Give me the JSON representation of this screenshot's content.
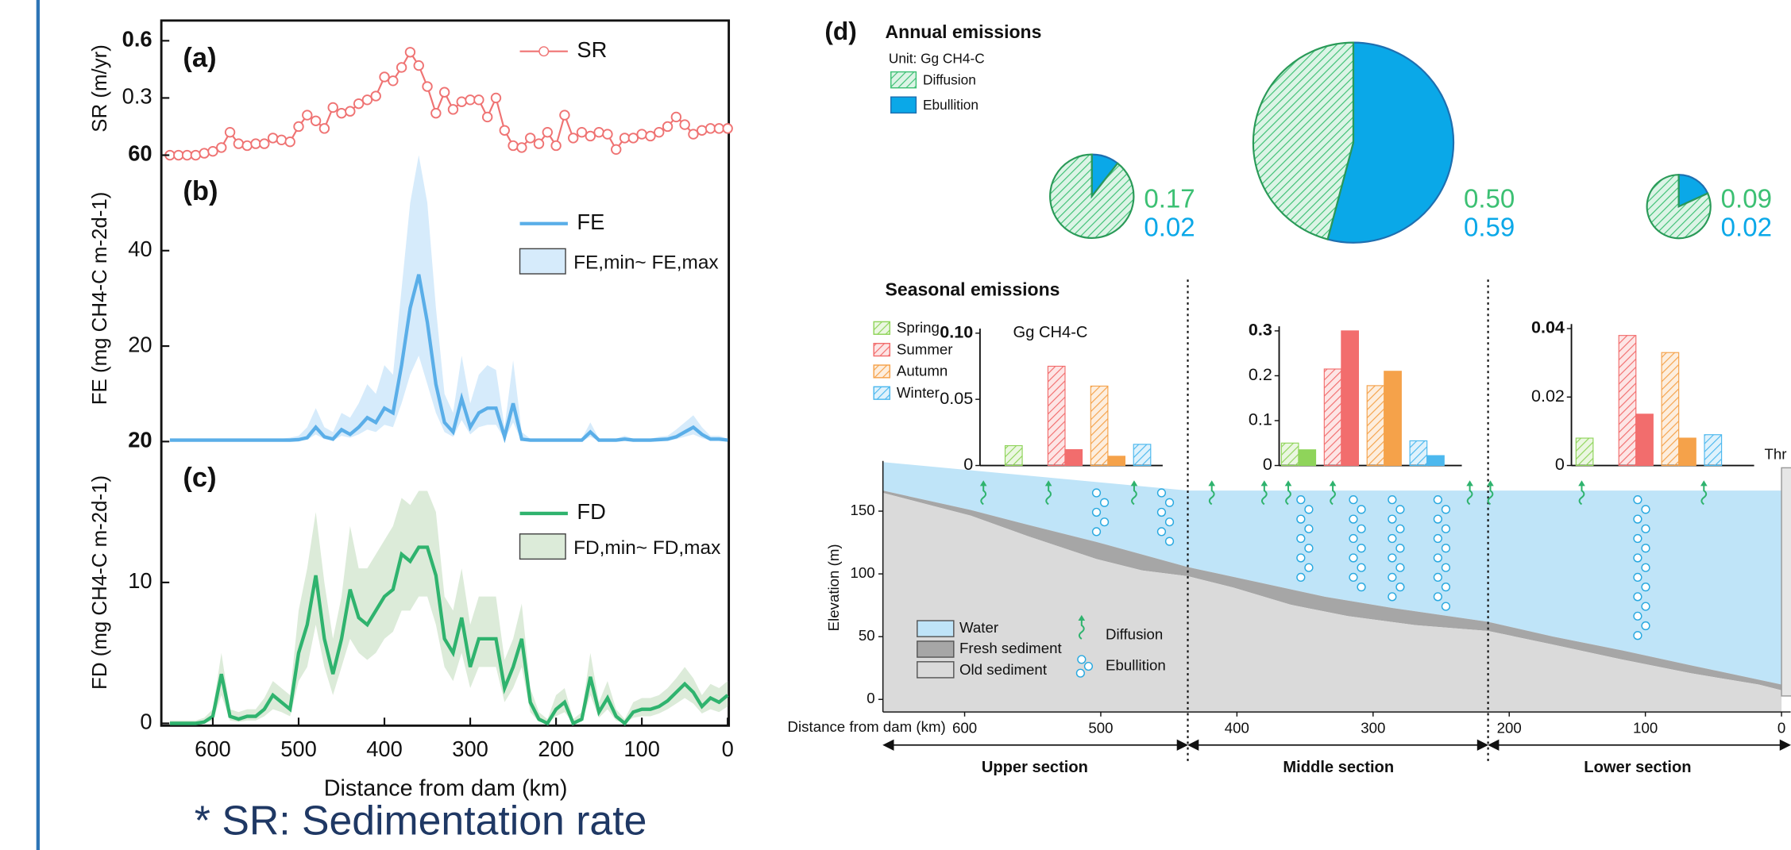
{
  "notes": {
    "footnote": "* SR: Sedimentation rate"
  },
  "chart_data": [
    {
      "type": "line",
      "panel_label": "(a)",
      "ylabel": "SR (m/yr)",
      "x": [
        650,
        640,
        630,
        620,
        610,
        600,
        590,
        580,
        570,
        560,
        550,
        540,
        530,
        520,
        510,
        500,
        490,
        480,
        470,
        460,
        450,
        440,
        430,
        420,
        410,
        400,
        390,
        380,
        370,
        360,
        350,
        340,
        330,
        320,
        310,
        300,
        290,
        280,
        270,
        260,
        250,
        240,
        230,
        220,
        210,
        200,
        190,
        180,
        170,
        160,
        150,
        140,
        130,
        120,
        110,
        100,
        90,
        80,
        70,
        60,
        50,
        40,
        30,
        20,
        10,
        0
      ],
      "xlim": [
        660,
        0
      ],
      "ylim": [
        0,
        0.7
      ],
      "yticks": [
        0.3,
        0.6
      ],
      "series": [
        {
          "name": "SR",
          "color": "#ef7373",
          "marker": "circle",
          "values": [
            0,
            0,
            0,
            0,
            0.01,
            0.02,
            0.04,
            0.12,
            0.06,
            0.05,
            0.06,
            0.06,
            0.09,
            0.08,
            0.07,
            0.15,
            0.21,
            0.18,
            0.14,
            0.25,
            0.22,
            0.23,
            0.27,
            0.29,
            0.31,
            0.41,
            0.39,
            0.46,
            0.54,
            0.47,
            0.36,
            0.22,
            0.33,
            0.24,
            0.28,
            0.29,
            0.29,
            0.2,
            0.3,
            0.13,
            0.05,
            0.04,
            0.09,
            0.06,
            0.12,
            0.05,
            0.21,
            0.09,
            0.12,
            0.1,
            0.12,
            0.11,
            0.03,
            0.09,
            0.09,
            0.11,
            0.1,
            0.12,
            0.15,
            0.2,
            0.16,
            0.11,
            0.13,
            0.14,
            0.14,
            0.14
          ]
        }
      ]
    },
    {
      "type": "line",
      "panel_label": "(b)",
      "ylabel": "FE (mg CH4-C m-2d-1)",
      "x": [
        650,
        640,
        630,
        620,
        610,
        600,
        590,
        580,
        570,
        560,
        550,
        540,
        530,
        520,
        510,
        500,
        490,
        480,
        470,
        460,
        450,
        440,
        430,
        420,
        410,
        400,
        390,
        380,
        370,
        360,
        350,
        340,
        330,
        320,
        310,
        300,
        290,
        280,
        270,
        260,
        250,
        240,
        230,
        220,
        210,
        200,
        190,
        180,
        170,
        160,
        150,
        140,
        130,
        120,
        110,
        100,
        90,
        80,
        70,
        60,
        50,
        40,
        30,
        20,
        10,
        0
      ],
      "xlim": [
        660,
        0
      ],
      "ylim": [
        0,
        60
      ],
      "yticks": [
        20,
        40,
        60
      ],
      "series": [
        {
          "name": "FE",
          "color": "#5aaee8",
          "values": [
            0.3,
            0.3,
            0.3,
            0.3,
            0.3,
            0.3,
            0.3,
            0.3,
            0.3,
            0.3,
            0.3,
            0.3,
            0.3,
            0.3,
            0.3,
            0.4,
            0.8,
            3,
            1,
            0.5,
            2.5,
            1.5,
            3,
            5,
            4,
            7,
            6,
            16,
            28,
            35,
            25,
            12,
            4,
            2,
            9,
            3,
            6,
            7,
            7,
            1,
            8,
            0.5,
            0.3,
            0.3,
            0.3,
            0.3,
            0.3,
            0.3,
            0.3,
            2,
            0.3,
            0.3,
            0.3,
            0.5,
            0.3,
            0.3,
            0.3,
            0.4,
            0.5,
            1,
            2,
            3,
            1.5,
            0.5,
            0.5,
            0.3
          ]
        }
      ],
      "band": {
        "name": "FE,min~ FE,max",
        "color": "#d6ebfb",
        "lower": [
          0.1,
          0.1,
          0.1,
          0.1,
          0.1,
          0.1,
          0.1,
          0.1,
          0.1,
          0.1,
          0.1,
          0.1,
          0.1,
          0.1,
          0.1,
          0.2,
          0.4,
          1.5,
          0.5,
          0.2,
          1.2,
          0.8,
          1.5,
          2.5,
          2,
          3.5,
          3,
          8,
          14,
          18,
          12,
          6,
          2,
          1,
          4.5,
          1.5,
          3,
          3.5,
          3.5,
          0.5,
          4,
          0.2,
          0.1,
          0.1,
          0.1,
          0.1,
          0.1,
          0.1,
          0.1,
          1,
          0.1,
          0.1,
          0.1,
          0.2,
          0.1,
          0.1,
          0.1,
          0.2,
          0.2,
          0.5,
          1,
          1.5,
          0.7,
          0.2,
          0.2,
          0.1
        ],
        "upper": [
          0.6,
          0.6,
          0.6,
          0.6,
          0.6,
          0.6,
          0.6,
          0.6,
          0.6,
          0.6,
          0.6,
          0.6,
          0.6,
          0.6,
          0.8,
          1.2,
          3,
          7,
          3,
          2,
          6,
          5,
          8,
          12,
          10,
          16,
          14,
          32,
          50,
          60,
          50,
          28,
          10,
          6,
          18,
          8,
          14,
          16,
          15,
          3,
          17,
          2,
          0.6,
          0.6,
          0.6,
          0.6,
          0.6,
          0.6,
          0.6,
          4,
          0.6,
          0.6,
          0.6,
          1.2,
          0.6,
          0.6,
          0.6,
          1,
          1.2,
          2.5,
          4,
          5.5,
          3,
          1.2,
          1.2,
          0.6
        ]
      }
    },
    {
      "type": "line",
      "panel_label": "(c)",
      "ylabel": "FD (mg CH4-C m-2d-1)",
      "x": [
        650,
        640,
        630,
        620,
        610,
        600,
        590,
        580,
        570,
        560,
        550,
        540,
        530,
        520,
        510,
        500,
        490,
        480,
        470,
        460,
        450,
        440,
        430,
        420,
        410,
        400,
        390,
        380,
        370,
        360,
        350,
        340,
        330,
        320,
        310,
        300,
        290,
        280,
        270,
        260,
        250,
        240,
        230,
        220,
        210,
        200,
        190,
        180,
        170,
        160,
        150,
        140,
        130,
        120,
        110,
        100,
        90,
        80,
        70,
        60,
        50,
        40,
        30,
        20,
        10,
        0
      ],
      "xlim": [
        660,
        0
      ],
      "xticks": [
        600,
        500,
        400,
        300,
        200,
        100,
        0
      ],
      "xlabel": "Distance from dam (km)",
      "ylim": [
        0,
        20
      ],
      "yticks": [
        0,
        10,
        20
      ],
      "series": [
        {
          "name": "FD",
          "color": "#2fb36e",
          "values": [
            0,
            0,
            0,
            0,
            0.1,
            0.5,
            3.5,
            0.5,
            0.3,
            0.5,
            0.5,
            1,
            2,
            1.5,
            1,
            5,
            7,
            10.5,
            6,
            3.5,
            6,
            9.5,
            7.5,
            7,
            8,
            9,
            9.5,
            12,
            11.5,
            12.5,
            12.5,
            10.5,
            6,
            5,
            7.5,
            4,
            6,
            6,
            6,
            2.5,
            4,
            6,
            1.5,
            0.3,
            0,
            1,
            1.5,
            0,
            0.3,
            3.3,
            0.8,
            1.8,
            0.5,
            0,
            0.8,
            1,
            1,
            1.2,
            1.6,
            2.2,
            2.8,
            2.2,
            1.2,
            1.8,
            1.5,
            2
          ]
        }
      ],
      "band": {
        "name": "FD,min~ FD,max",
        "color": "#dcebd9",
        "lower": [
          0,
          0,
          0,
          0,
          0,
          0.2,
          2,
          0.2,
          0.1,
          0.2,
          0.2,
          0.5,
          1,
          0.8,
          0.5,
          3,
          4,
          7,
          4,
          2,
          4,
          6,
          5,
          4.5,
          5,
          6,
          6.5,
          8,
          8,
          9,
          9,
          7,
          4,
          3,
          5,
          2.5,
          4,
          4,
          4,
          1.5,
          2.5,
          4,
          0.8,
          0.1,
          0,
          0.5,
          0.8,
          0,
          0.1,
          2,
          0.4,
          1,
          0.2,
          0,
          0.4,
          0.5,
          0.5,
          0.7,
          1,
          1.4,
          1.8,
          1.4,
          0.7,
          1,
          0.8,
          1.2
        ],
        "upper": [
          0.2,
          0.2,
          0.2,
          0.2,
          0.4,
          1,
          5,
          1,
          0.8,
          1,
          1,
          1.8,
          3,
          2.5,
          2,
          8,
          11,
          15,
          10,
          6,
          9,
          14,
          11,
          11,
          12,
          13,
          14,
          16,
          15.5,
          16.5,
          16.5,
          15,
          9,
          8,
          11,
          7,
          9,
          9,
          9,
          4.5,
          6,
          8.5,
          2.5,
          0.8,
          0.3,
          2,
          2.5,
          0.3,
          0.8,
          5,
          1.5,
          3,
          1,
          0.3,
          1.5,
          1.8,
          1.8,
          2,
          2.5,
          3.2,
          4,
          3.2,
          2,
          2.8,
          2.5,
          3
        ]
      }
    },
    {
      "type": "pie",
      "panel_label": "(d)",
      "title": "Annual emissions",
      "unit": "Unit: Gg CH4-C",
      "categories": [
        "Diffusion",
        "Ebullition"
      ],
      "colors": [
        "#3cc073",
        "#0aa8e8"
      ],
      "hatched": [
        true,
        false
      ],
      "pies": [
        {
          "values": [
            0.17,
            0.02
          ],
          "value_labels": [
            "0.17",
            "0.02"
          ]
        },
        {
          "values": [
            0.5,
            0.59
          ],
          "value_labels": [
            "0.50",
            "0.59"
          ]
        },
        {
          "values": [
            0.09,
            0.02
          ],
          "value_labels": [
            "0.09",
            "0.02"
          ]
        }
      ]
    },
    {
      "type": "bar",
      "title": "Seasonal emissions",
      "unit": "Gg CH4-C",
      "categories": [
        "Spring",
        "Summer",
        "Autumn",
        "Winter"
      ],
      "colors": [
        "#8fd45a",
        "#f26d6d",
        "#f5a24a",
        "#4cb8ee"
      ],
      "panels": [
        {
          "ylim": [
            0,
            0.1
          ],
          "yticks": [
            0,
            0.05,
            {
              "value": 0.1,
              "label": "0.10"
            }
          ],
          "series": [
            {
              "hatched": true,
              "values": [
                0.015,
                0.075,
                0.06,
                0.016
              ]
            },
            {
              "hatched": false,
              "values": [
                0,
                0.012,
                0.007,
                0
              ]
            }
          ]
        },
        {
          "ylim": [
            0,
            0.3
          ],
          "yticks": [
            0,
            0.1,
            0.2,
            0.3
          ],
          "series": [
            {
              "hatched": true,
              "values": [
                0.05,
                0.215,
                0.178,
                0.055
              ]
            },
            {
              "hatched": false,
              "values": [
                0.035,
                0.3,
                0.21,
                0.022
              ]
            }
          ]
        },
        {
          "ylim": [
            0,
            0.04
          ],
          "yticks": [
            0,
            0.02,
            0.04
          ],
          "series": [
            {
              "hatched": true,
              "values": [
                0.008,
                0.038,
                0.033,
                0.009
              ]
            },
            {
              "hatched": false,
              "values": [
                0,
                0.015,
                0.008,
                0
              ]
            }
          ]
        }
      ]
    },
    {
      "type": "profile",
      "xlabel": "Distance from dam (km)",
      "ylabel": "Elevation (m)",
      "xlim": [
        660,
        0
      ],
      "xticks": [
        600,
        500,
        400,
        300,
        200,
        100,
        0
      ],
      "ylim": [
        -10,
        190
      ],
      "yticks": [
        0,
        50,
        100,
        150
      ],
      "sections": [
        "Upper section",
        "Middle section",
        "Lower section"
      ],
      "legend": [
        "Water",
        "Fresh sediment",
        "Old sediment",
        "Diffusion",
        "Ebullition"
      ],
      "dam_label": "Thr"
    }
  ]
}
